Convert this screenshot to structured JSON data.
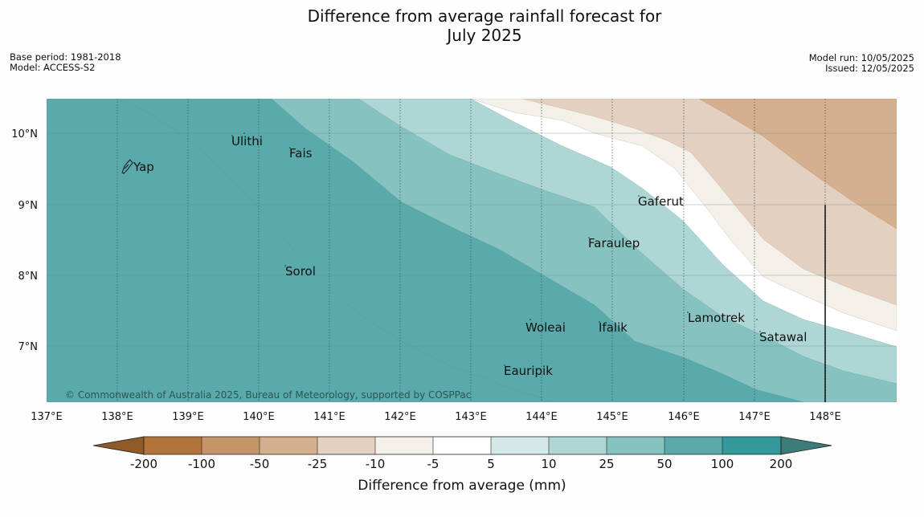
{
  "title_line1": "Difference from average rainfall forecast for",
  "title_line2": "July 2025",
  "base_period": "Base period: 1981-2018",
  "model": "Model: ACCESS-S2",
  "model_run": "Model run: 10/05/2025",
  "issued": "Issued: 12/05/2025",
  "copyright": "© Commonwealth of Australia 2025, Bureau of Meteorology, supported by COSPPac",
  "lat_labels": [
    "10°N",
    "9°N",
    "8°N",
    "7°N"
  ],
  "lon_labels": [
    "137°E",
    "138°E",
    "139°E",
    "140°E",
    "141°E",
    "142°E",
    "143°E",
    "144°E",
    "145°E",
    "146°E",
    "147°E",
    "148°E"
  ],
  "places": [
    {
      "name": "Yap"
    },
    {
      "name": "Ulithi"
    },
    {
      "name": "Fais"
    },
    {
      "name": "Gaferut"
    },
    {
      "name": "Faraulep"
    },
    {
      "name": "Sorol"
    },
    {
      "name": "Lamotrek"
    },
    {
      "name": "Woleai"
    },
    {
      "name": "Ifalik"
    },
    {
      "name": "Satawal"
    },
    {
      "name": "Eauripik"
    }
  ],
  "colorbar": {
    "ticks": [
      "-200",
      "-100",
      "-50",
      "-25",
      "-10",
      "-5",
      "5",
      "10",
      "25",
      "50",
      "100",
      "200"
    ],
    "label": "Difference from average (mm)",
    "colors": {
      "below_-200": "#8f5a27",
      "-200_-100": "#b1753c",
      "-100_-50": "#c59568",
      "-50_-25": "#d4b08e",
      "-25_-10": "#e3d0c0",
      "-10_-5": "#f3efe9",
      "-5_5": "#ffffff",
      "5_10": "#d4e9e7",
      "10_25": "#aed6d4",
      "25_50": "#86c2c0",
      "50_100": "#5aaaac",
      "100_200": "#34999b",
      "above_200": "#3e7b7b"
    }
  }
}
